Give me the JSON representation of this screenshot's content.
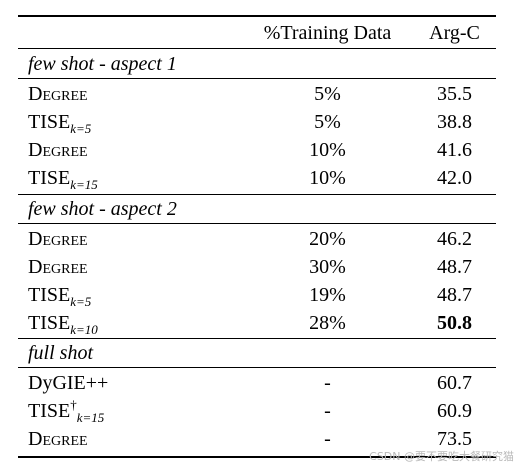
{
  "header": {
    "method": "",
    "pct": "%Training Data",
    "arg": "Arg-C"
  },
  "sections": [
    {
      "title": "few shot - aspect 1",
      "rows": [
        {
          "name": "Degree",
          "sub": "",
          "sup": "",
          "pct": "5%",
          "arg": "35.5"
        },
        {
          "name": "TISE",
          "sub": "k=5",
          "sup": "",
          "pct": "5%",
          "arg": "38.8"
        },
        {
          "name": "Degree",
          "sub": "",
          "sup": "",
          "pct": "10%",
          "arg": "41.6"
        },
        {
          "name": "TISE",
          "sub": "k=15",
          "sup": "",
          "pct": "10%",
          "arg": "42.0"
        }
      ]
    },
    {
      "title": "few shot - aspect 2",
      "rows": [
        {
          "name": "Degree",
          "sub": "",
          "sup": "",
          "pct": "20%",
          "arg": "46.2"
        },
        {
          "name": "Degree",
          "sub": "",
          "sup": "",
          "pct": "30%",
          "arg": "48.7"
        },
        {
          "name": "TISE",
          "sub": "k=5",
          "sup": "",
          "pct": "19%",
          "arg": "48.7"
        },
        {
          "name": "TISE",
          "sub": "k=10",
          "sup": "",
          "pct": "28%",
          "arg": "50.8"
        }
      ]
    },
    {
      "title": "full shot",
      "rows": [
        {
          "name": "DyGIE++",
          "sub": "",
          "sup": "",
          "pct": "-",
          "arg": "60.7"
        },
        {
          "name": "TISE",
          "sub": "k=15",
          "sup": "†",
          "pct": "-",
          "arg": "60.9"
        },
        {
          "name": "Degree",
          "sub": "",
          "sup": "",
          "pct": "-",
          "arg": "73.5"
        }
      ]
    }
  ],
  "watermark": "CSDN @要不要吃大餐研究猫"
}
